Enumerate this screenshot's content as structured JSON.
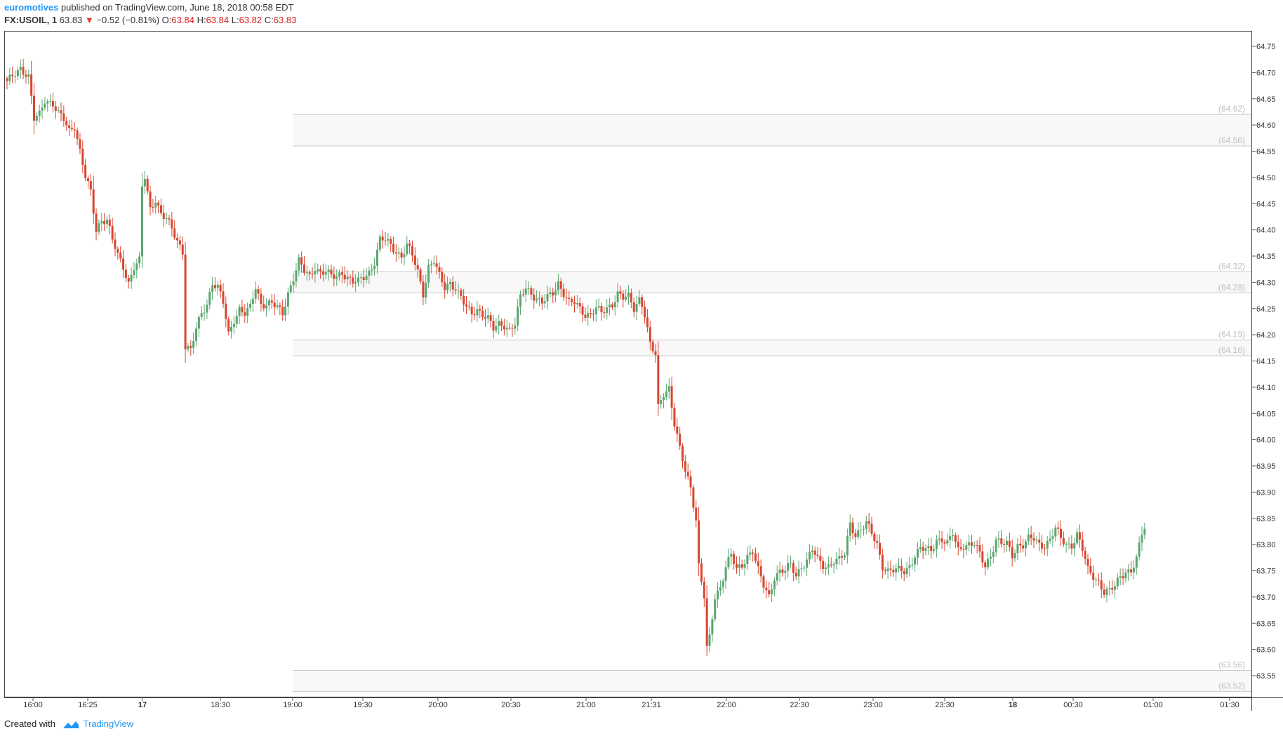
{
  "header": {
    "author": "euromotives",
    "published": "published on TradingView.com, June 18, 2018 00:58 EDT",
    "symbol": "FX:USOIL, 1",
    "last_price": "63.83",
    "change": "−0.52 (−0.81%)",
    "o_label": "O:",
    "o_value": "63.84",
    "h_label": "H:",
    "h_value": "63.84",
    "l_label": "L:",
    "l_value": "63.82",
    "c_label": "C:",
    "c_value": "63.83"
  },
  "footer": {
    "created_with": "Created with",
    "brand": "TradingView"
  },
  "colors": {
    "up": "#5aa66e",
    "down": "#d9452e",
    "zone_line": "#c8c8c8",
    "zone_fill": "#f8f8f8",
    "zone_label": "#c0c0c0",
    "axis_text": "#333333"
  },
  "chart_data": {
    "type": "candlestick",
    "symbol": "FX:USOIL",
    "interval": "1",
    "y_ticks": [
      "64.75",
      "64.70",
      "64.65",
      "64.60",
      "64.55",
      "64.50",
      "64.45",
      "64.40",
      "64.35",
      "64.30",
      "64.25",
      "64.20",
      "64.15",
      "64.10",
      "64.05",
      "64.00",
      "63.95",
      "63.90",
      "63.85",
      "63.80",
      "63.75",
      "63.70",
      "63.65",
      "63.60",
      "63.55"
    ],
    "ylim": [
      63.515,
      64.79
    ],
    "x_tick_labels": [
      "16:00",
      "16:25",
      "17",
      "18:30",
      "19:00",
      "19:30",
      "20:00",
      "20:30",
      "21:00",
      "21:31",
      "22:00",
      "22:30",
      "23:00",
      "23:30",
      "18",
      "00:30",
      "01:00",
      "01:30"
    ],
    "x_tick_bold": [
      "17",
      "18"
    ],
    "zones": [
      {
        "upper": "64.62",
        "lower": "64.56"
      },
      {
        "upper": "64.32",
        "lower": "64.28"
      },
      {
        "upper": "64.19",
        "lower": "64.16"
      },
      {
        "upper": "63.56",
        "lower": "63.52"
      }
    ],
    "close_path": [
      [
        0,
        64.68
      ],
      [
        3,
        64.7
      ],
      [
        5,
        64.71
      ],
      [
        8,
        64.69
      ],
      [
        10,
        64.61
      ],
      [
        12,
        64.62
      ],
      [
        14,
        64.65
      ],
      [
        17,
        64.64
      ],
      [
        19,
        64.62
      ],
      [
        21,
        64.61
      ],
      [
        23,
        64.59
      ],
      [
        25,
        64.6
      ],
      [
        27,
        64.55
      ],
      [
        29,
        64.5
      ],
      [
        31,
        64.47
      ],
      [
        33,
        64.4
      ],
      [
        35,
        64.42
      ],
      [
        37,
        64.42
      ],
      [
        39,
        64.38
      ],
      [
        41,
        64.35
      ],
      [
        43,
        64.33
      ],
      [
        45,
        64.3
      ],
      [
        47,
        64.33
      ],
      [
        49,
        64.34
      ],
      [
        50,
        64.48
      ],
      [
        51,
        64.5
      ],
      [
        53,
        64.44
      ],
      [
        55,
        64.46
      ],
      [
        57,
        64.43
      ],
      [
        59,
        64.42
      ],
      [
        61,
        64.4
      ],
      [
        63,
        64.38
      ],
      [
        65,
        64.36
      ],
      [
        66,
        64.18
      ],
      [
        68,
        64.17
      ],
      [
        70,
        64.21
      ],
      [
        72,
        64.24
      ],
      [
        74,
        64.26
      ],
      [
        76,
        64.3
      ],
      [
        78,
        64.29
      ],
      [
        80,
        64.26
      ],
      [
        82,
        64.2
      ],
      [
        84,
        64.23
      ],
      [
        86,
        64.25
      ],
      [
        88,
        64.24
      ],
      [
        90,
        64.25
      ],
      [
        92,
        64.29
      ],
      [
        94,
        64.26
      ],
      [
        96,
        64.26
      ],
      [
        98,
        64.26
      ],
      [
        100,
        64.25
      ],
      [
        102,
        64.24
      ],
      [
        104,
        64.28
      ],
      [
        106,
        64.31
      ],
      [
        108,
        64.34
      ],
      [
        110,
        64.32
      ],
      [
        112,
        64.31
      ],
      [
        114,
        64.33
      ],
      [
        116,
        64.32
      ],
      [
        118,
        64.32
      ],
      [
        120,
        64.31
      ],
      [
        122,
        64.31
      ],
      [
        124,
        64.32
      ],
      [
        126,
        64.31
      ],
      [
        128,
        64.3
      ],
      [
        130,
        64.3
      ],
      [
        132,
        64.31
      ],
      [
        134,
        64.32
      ],
      [
        136,
        64.34
      ],
      [
        138,
        64.38
      ],
      [
        140,
        64.38
      ],
      [
        142,
        64.37
      ],
      [
        144,
        64.36
      ],
      [
        146,
        64.35
      ],
      [
        148,
        64.37
      ],
      [
        150,
        64.35
      ],
      [
        152,
        64.32
      ],
      [
        154,
        64.28
      ],
      [
        156,
        64.33
      ],
      [
        158,
        64.34
      ],
      [
        160,
        64.31
      ],
      [
        162,
        64.29
      ],
      [
        164,
        64.3
      ],
      [
        166,
        64.29
      ],
      [
        168,
        64.27
      ],
      [
        170,
        64.25
      ],
      [
        172,
        64.24
      ],
      [
        174,
        64.25
      ],
      [
        176,
        64.24
      ],
      [
        178,
        64.23
      ],
      [
        180,
        64.21
      ],
      [
        182,
        64.22
      ],
      [
        184,
        64.22
      ],
      [
        186,
        64.21
      ],
      [
        188,
        64.22
      ],
      [
        190,
        64.27
      ],
      [
        192,
        64.29
      ],
      [
        194,
        64.28
      ],
      [
        196,
        64.27
      ],
      [
        198,
        64.26
      ],
      [
        200,
        64.27
      ],
      [
        202,
        64.28
      ],
      [
        204,
        64.3
      ],
      [
        206,
        64.28
      ],
      [
        208,
        64.26
      ],
      [
        210,
        64.26
      ],
      [
        212,
        64.25
      ],
      [
        214,
        64.24
      ],
      [
        216,
        64.24
      ],
      [
        218,
        64.25
      ],
      [
        220,
        64.24
      ],
      [
        222,
        64.25
      ],
      [
        224,
        64.26
      ],
      [
        226,
        64.28
      ],
      [
        228,
        64.27
      ],
      [
        230,
        64.27
      ],
      [
        232,
        64.25
      ],
      [
        234,
        64.27
      ],
      [
        235,
        64.26
      ],
      [
        236,
        64.24
      ],
      [
        238,
        64.18
      ],
      [
        240,
        64.16
      ],
      [
        241,
        64.06
      ],
      [
        243,
        64.09
      ],
      [
        245,
        64.1
      ],
      [
        247,
        64.03
      ],
      [
        249,
        63.98
      ],
      [
        251,
        63.94
      ],
      [
        253,
        63.91
      ],
      [
        255,
        63.85
      ],
      [
        256,
        63.76
      ],
      [
        258,
        63.7
      ],
      [
        259,
        63.6
      ],
      [
        260,
        63.62
      ],
      [
        262,
        63.7
      ],
      [
        264,
        63.72
      ],
      [
        266,
        63.76
      ],
      [
        268,
        63.78
      ],
      [
        270,
        63.75
      ],
      [
        272,
        63.76
      ],
      [
        274,
        63.78
      ],
      [
        276,
        63.79
      ],
      [
        278,
        63.75
      ],
      [
        280,
        63.72
      ],
      [
        282,
        63.7
      ],
      [
        284,
        63.74
      ],
      [
        286,
        63.75
      ],
      [
        288,
        63.75
      ],
      [
        290,
        63.76
      ],
      [
        292,
        63.74
      ],
      [
        294,
        63.76
      ],
      [
        296,
        63.77
      ],
      [
        298,
        63.79
      ],
      [
        300,
        63.77
      ],
      [
        302,
        63.76
      ],
      [
        304,
        63.76
      ],
      [
        306,
        63.77
      ],
      [
        308,
        63.77
      ],
      [
        310,
        63.78
      ],
      [
        312,
        63.84
      ],
      [
        314,
        63.82
      ],
      [
        316,
        63.83
      ],
      [
        318,
        63.84
      ],
      [
        320,
        63.82
      ],
      [
        322,
        63.8
      ],
      [
        324,
        63.76
      ],
      [
        326,
        63.75
      ],
      [
        328,
        63.75
      ],
      [
        330,
        63.75
      ],
      [
        332,
        63.75
      ],
      [
        334,
        63.76
      ],
      [
        336,
        63.78
      ],
      [
        338,
        63.79
      ],
      [
        340,
        63.79
      ],
      [
        342,
        63.79
      ],
      [
        344,
        63.81
      ],
      [
        346,
        63.81
      ],
      [
        348,
        63.8
      ],
      [
        350,
        63.82
      ],
      [
        352,
        63.79
      ],
      [
        354,
        63.8
      ],
      [
        356,
        63.8
      ],
      [
        358,
        63.8
      ],
      [
        360,
        63.78
      ],
      [
        362,
        63.76
      ],
      [
        364,
        63.78
      ],
      [
        366,
        63.81
      ],
      [
        368,
        63.8
      ],
      [
        370,
        63.8
      ],
      [
        372,
        63.78
      ],
      [
        374,
        63.8
      ],
      [
        376,
        63.8
      ],
      [
        378,
        63.81
      ],
      [
        380,
        63.81
      ],
      [
        382,
        63.8
      ],
      [
        384,
        63.8
      ],
      [
        386,
        63.81
      ],
      [
        388,
        63.83
      ],
      [
        390,
        63.81
      ],
      [
        392,
        63.8
      ],
      [
        394,
        63.8
      ],
      [
        396,
        63.82
      ],
      [
        398,
        63.79
      ],
      [
        400,
        63.75
      ],
      [
        402,
        63.74
      ],
      [
        404,
        63.73
      ],
      [
        406,
        63.71
      ],
      [
        408,
        63.71
      ],
      [
        410,
        63.72
      ],
      [
        412,
        63.74
      ],
      [
        414,
        63.75
      ],
      [
        416,
        63.75
      ],
      [
        418,
        63.77
      ],
      [
        420,
        63.82
      ],
      [
        421,
        63.83
      ]
    ]
  }
}
